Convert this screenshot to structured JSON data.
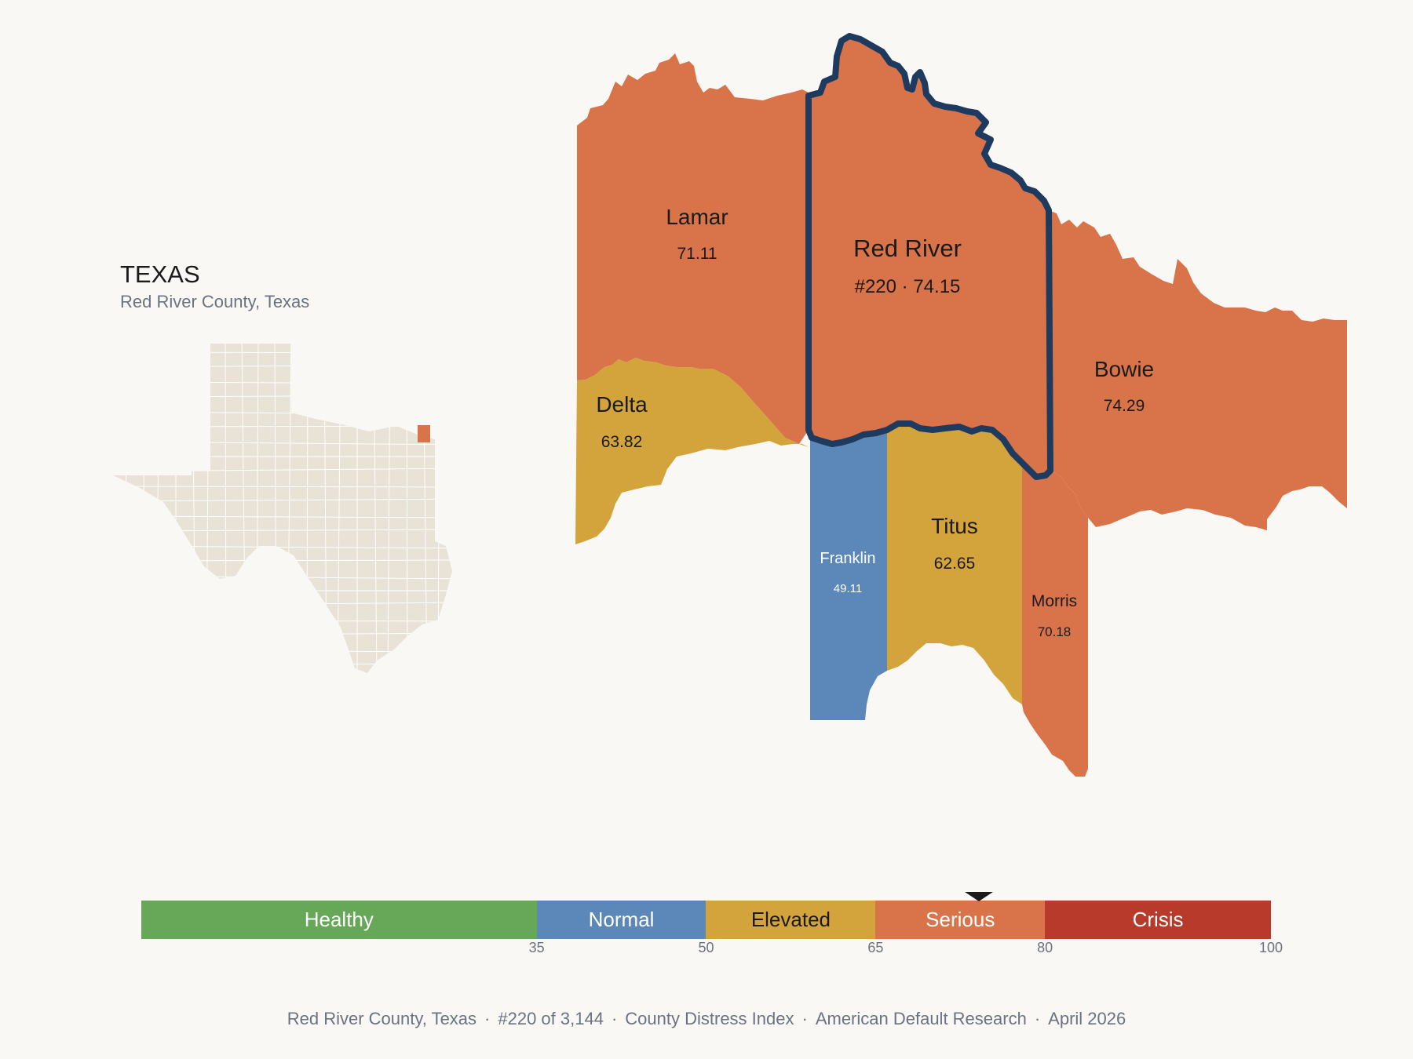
{
  "header": {
    "state_title": "TEXAS",
    "subtitle": "Red River County, Texas"
  },
  "colors": {
    "healthy": "#66a758",
    "normal": "#5b88b8",
    "elevated": "#d3a43c",
    "serious": "#d9744a",
    "crisis": "#b83a2b",
    "highlight_outline": "#1e3a5f",
    "inset_fill": "#e8e2d7"
  },
  "counties": [
    {
      "key": "lamar",
      "name": "Lamar",
      "value_text": "71.11",
      "category": "serious"
    },
    {
      "key": "red_river",
      "name": "Red River",
      "value_text": "#220 · 74.15",
      "category": "serious",
      "highlighted": true
    },
    {
      "key": "delta",
      "name": "Delta",
      "value_text": "63.82",
      "category": "elevated"
    },
    {
      "key": "bowie",
      "name": "Bowie",
      "value_text": "74.29",
      "category": "serious"
    },
    {
      "key": "franklin",
      "name": "Franklin",
      "value_text": "49.11",
      "category": "normal"
    },
    {
      "key": "titus",
      "name": "Titus",
      "value_text": "62.65",
      "category": "elevated"
    },
    {
      "key": "morris",
      "name": "Morris",
      "value_text": "70.18",
      "category": "serious"
    }
  ],
  "legend": {
    "segments": [
      {
        "label": "Healthy",
        "from": 0,
        "to": 35,
        "color": "#66a758",
        "text_color": "#ffffff"
      },
      {
        "label": "Normal",
        "from": 35,
        "to": 50,
        "color": "#5b88b8",
        "text_color": "#ffffff"
      },
      {
        "label": "Elevated",
        "from": 50,
        "to": 65,
        "color": "#d3a43c",
        "text_color": "#1a1a1a"
      },
      {
        "label": "Serious",
        "from": 65,
        "to": 80,
        "color": "#d9744a",
        "text_color": "#ffffff"
      },
      {
        "label": "Crisis",
        "from": 80,
        "to": 100,
        "color": "#b83a2b",
        "text_color": "#ffffff"
      }
    ],
    "ticks": [
      "35",
      "50",
      "65",
      "80",
      "100"
    ],
    "marker_value": 74.15
  },
  "footer": {
    "parts": [
      "Red River County, Texas",
      "#220 of 3,144",
      "County Distress Index",
      "American Default Research",
      "April 2026"
    ]
  }
}
